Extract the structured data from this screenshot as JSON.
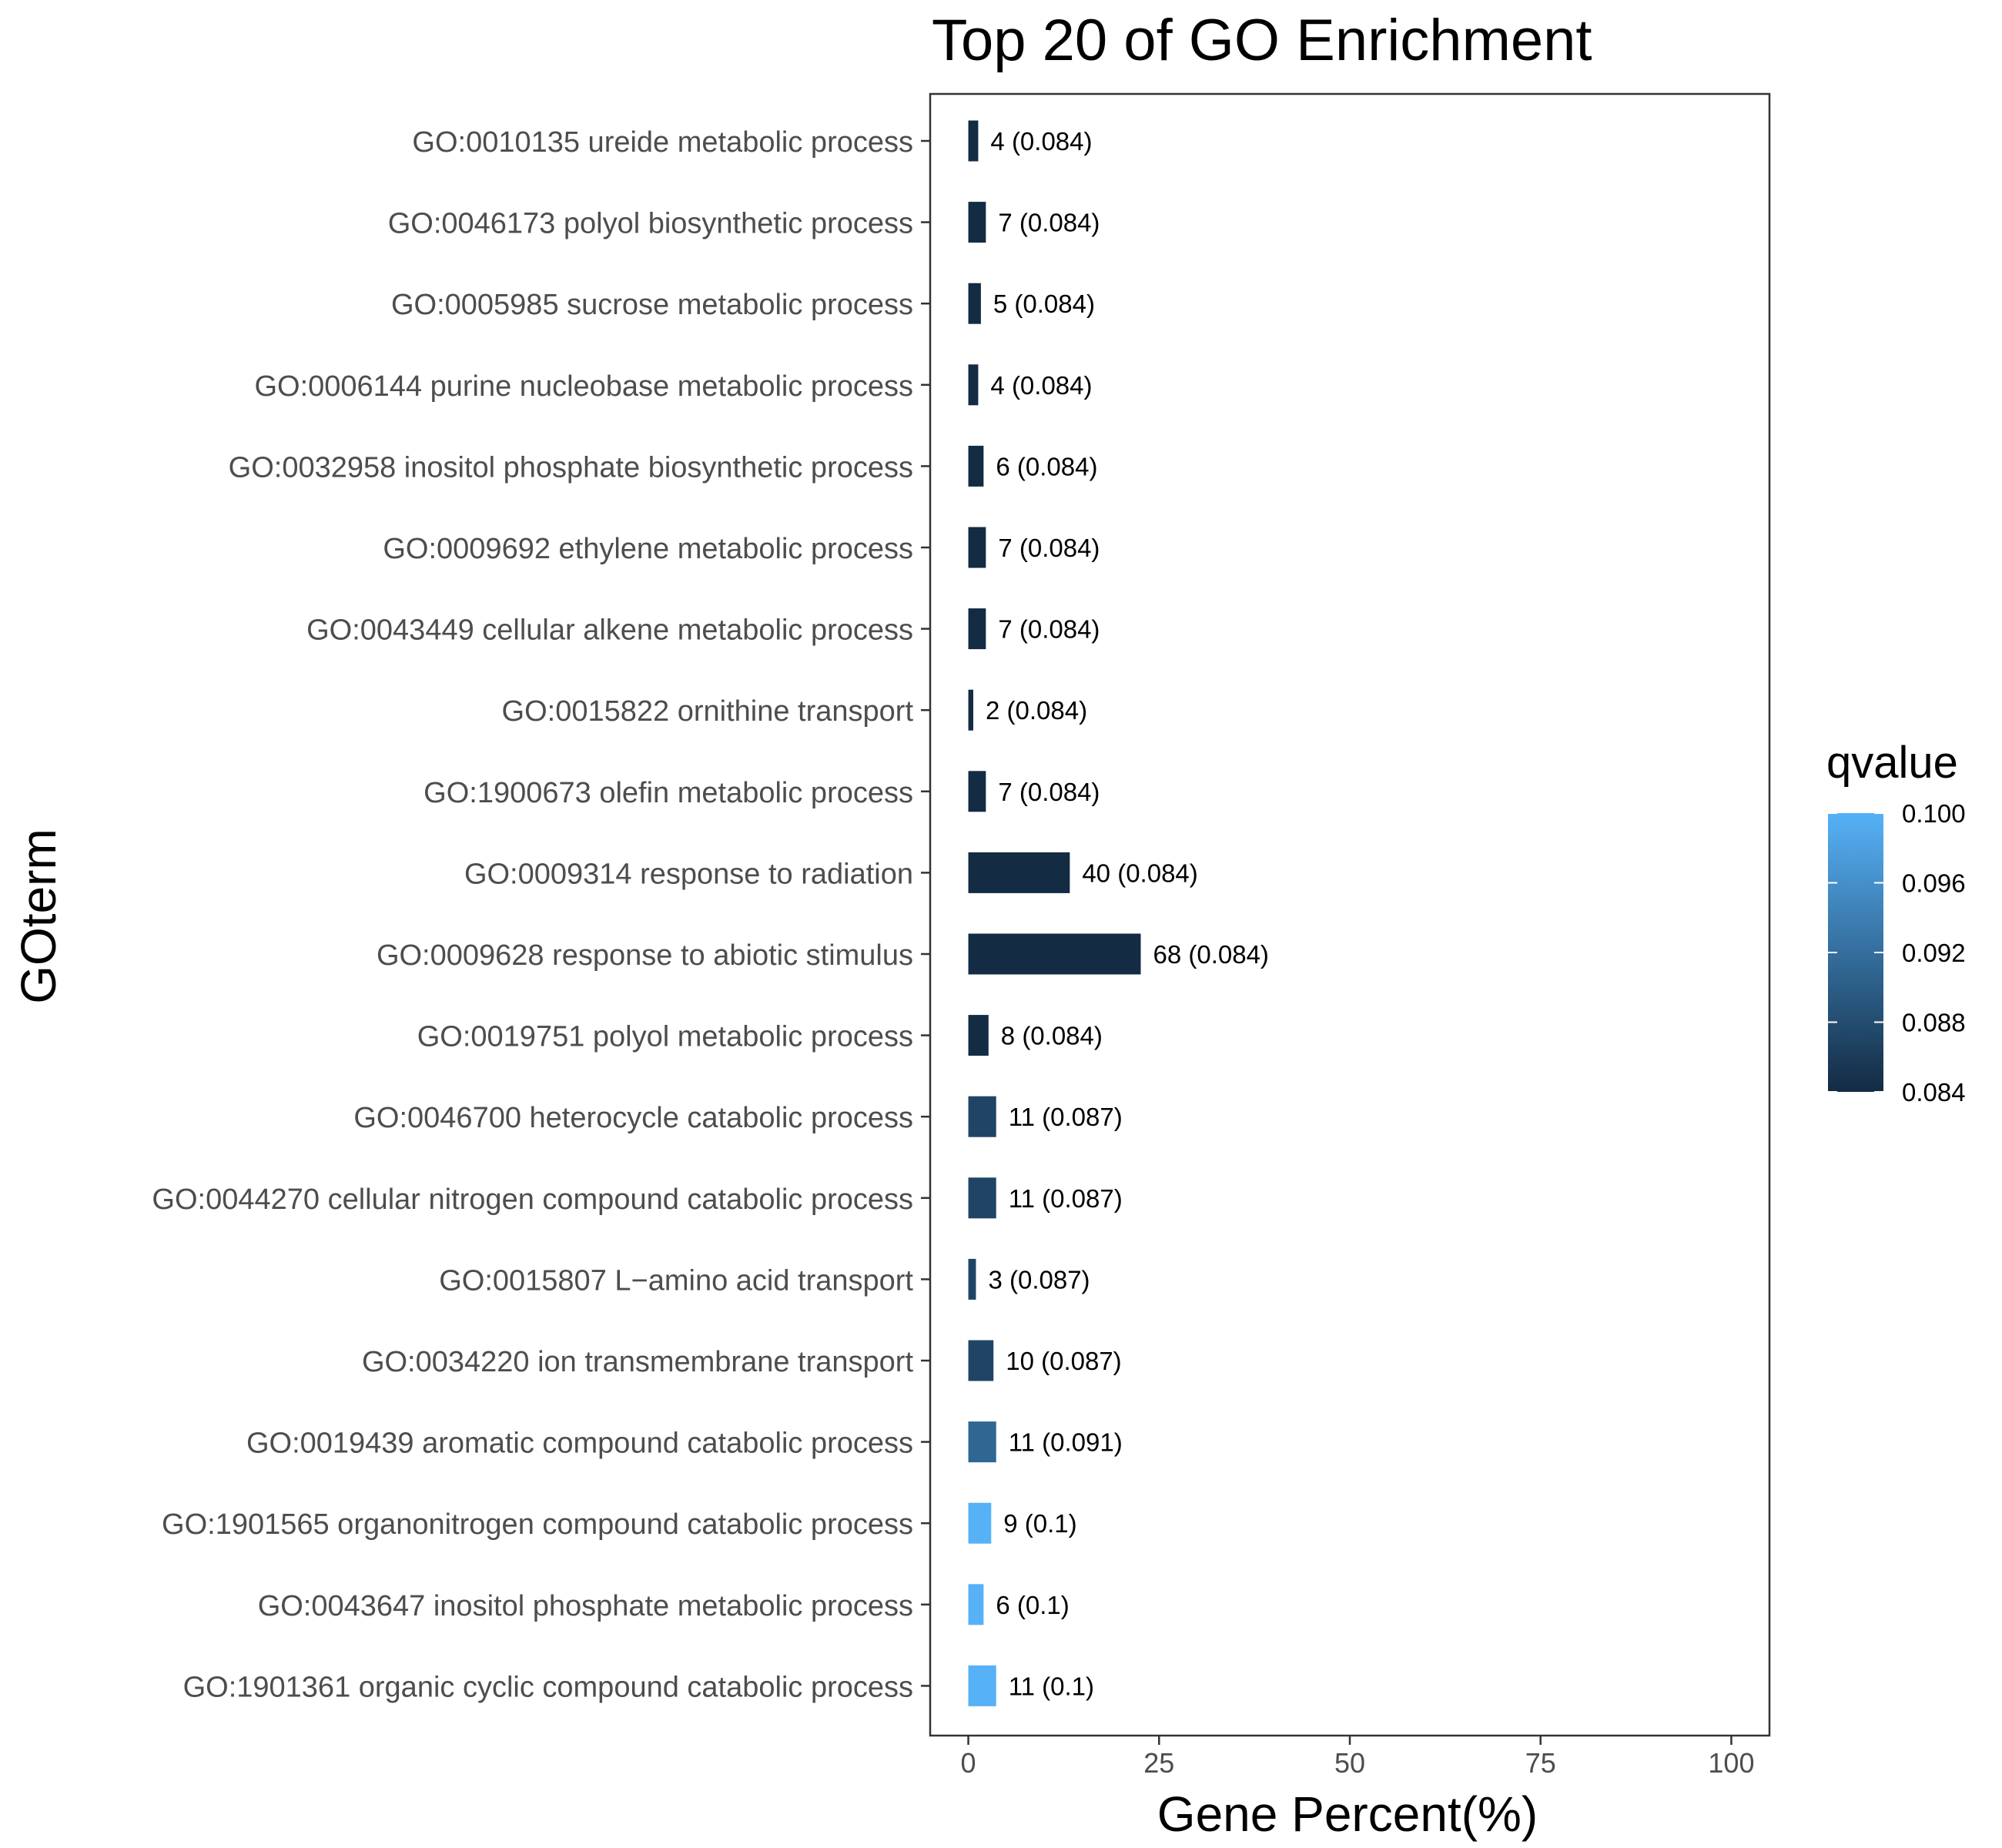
{
  "chart_data": {
    "type": "bar",
    "orientation": "horizontal",
    "title": "Top 20 of GO Enrichment",
    "xlabel": "Gene Percent(%)",
    "ylabel": "GOterm",
    "xlim": [
      -5,
      105
    ],
    "xticks": [
      "0",
      "25",
      "50",
      "75",
      "100"
    ],
    "grid": false,
    "categories": [
      "GO:0010135 ureide metabolic process",
      "GO:0046173 polyol biosynthetic process",
      "GO:0005985 sucrose metabolic process",
      "GO:0006144 purine nucleobase metabolic process",
      "GO:0032958 inositol phosphate biosynthetic process",
      "GO:0009692 ethylene metabolic process",
      "GO:0043449 cellular alkene metabolic process",
      "GO:0015822 ornithine transport",
      "GO:1900673 olefin metabolic process",
      "GO:0009314 response to radiation",
      "GO:0009628 response to abiotic stimulus",
      "GO:0019751 polyol metabolic process",
      "GO:0046700 heterocycle catabolic process",
      "GO:0044270 cellular nitrogen compound catabolic process",
      "GO:0015807 L−amino acid transport",
      "GO:0034220 ion transmembrane transport",
      "GO:0019439 aromatic compound catabolic process",
      "GO:1901565 organonitrogen compound catabolic process",
      "GO:0043647 inositol phosphate metabolic process",
      "GO:1901361 organic cyclic compound catabolic process"
    ],
    "values": [
      1.3,
      2.3,
      1.65,
      1.3,
      2.0,
      2.3,
      2.3,
      0.65,
      2.3,
      13.3,
      22.6,
      2.65,
      3.65,
      3.65,
      1.0,
      3.3,
      3.65,
      3.0,
      2.0,
      3.65
    ],
    "counts": [
      4,
      7,
      5,
      4,
      6,
      7,
      7,
      2,
      7,
      40,
      68,
      8,
      11,
      11,
      3,
      10,
      11,
      9,
      6,
      11
    ],
    "qvalues": [
      0.084,
      0.084,
      0.084,
      0.084,
      0.084,
      0.084,
      0.084,
      0.084,
      0.084,
      0.084,
      0.084,
      0.084,
      0.087,
      0.087,
      0.087,
      0.087,
      0.091,
      0.1,
      0.1,
      0.1
    ],
    "bar_labels": [
      "4 (0.084)",
      "7 (0.084)",
      "5 (0.084)",
      "4 (0.084)",
      "6 (0.084)",
      "7 (0.084)",
      "7 (0.084)",
      "2 (0.084)",
      "7 (0.084)",
      "40 (0.084)",
      "68 (0.084)",
      "8 (0.084)",
      "11 (0.087)",
      "11 (0.087)",
      "3 (0.087)",
      "10 (0.087)",
      "11 (0.091)",
      "9 (0.1)",
      "6 (0.1)",
      "11 (0.1)"
    ],
    "legend": {
      "title": "qvalue",
      "placement": "right",
      "range": [
        0.084,
        0.1
      ],
      "ticks": [
        "0.100",
        "0.096",
        "0.092",
        "0.088",
        "0.084"
      ],
      "tick_values": [
        0.1,
        0.096,
        0.092,
        0.088,
        0.084
      ],
      "color_low": "#132b43",
      "color_high": "#56b1f7"
    }
  }
}
